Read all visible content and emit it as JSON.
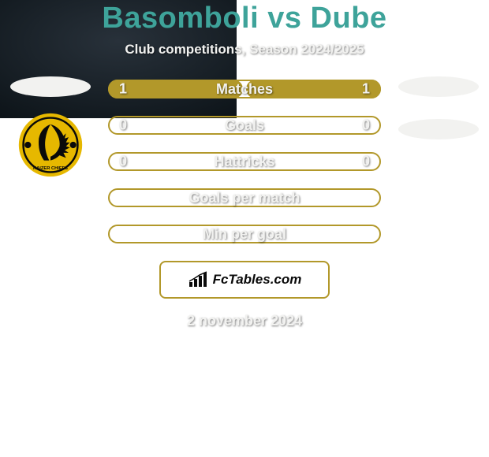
{
  "title": "Basomboli vs Dube",
  "subtitle": "Club competitions, Season 2024/2025",
  "date": "2 november 2024",
  "footer_brand": "FcTables.com",
  "colors": {
    "bg_top": "#28313a",
    "bg_bottom": "#0d1419",
    "title": "#3ea39a",
    "text_light": "#f2f2f0",
    "bar_fill": "#b2982a",
    "bar_border": "#b2982a",
    "bar_track_border": "#b2982a",
    "badge_bg": "#ffffff",
    "badge_border": "#b2982a",
    "placeholder": "#f2f2f0",
    "club_gold": "#e6b800",
    "club_black": "#0a0a0a"
  },
  "stats": [
    {
      "label": "Matches",
      "left_val": "1",
      "right_val": "1",
      "left_pct": 50,
      "right_pct": 50
    },
    {
      "label": "Goals",
      "left_val": "0",
      "right_val": "0",
      "left_pct": 0,
      "right_pct": 0
    },
    {
      "label": "Hattricks",
      "left_val": "0",
      "right_val": "0",
      "left_pct": 0,
      "right_pct": 0
    },
    {
      "label": "Goals per match",
      "left_val": "",
      "right_val": "",
      "left_pct": 0,
      "right_pct": 0
    },
    {
      "label": "Min per goal",
      "left_val": "",
      "right_val": "",
      "left_pct": 0,
      "right_pct": 0
    }
  ],
  "left_side": {
    "has_placeholder": true,
    "has_club": true,
    "club_name": "kaizer-chiefs"
  },
  "right_side": {
    "placeholders": 2
  }
}
